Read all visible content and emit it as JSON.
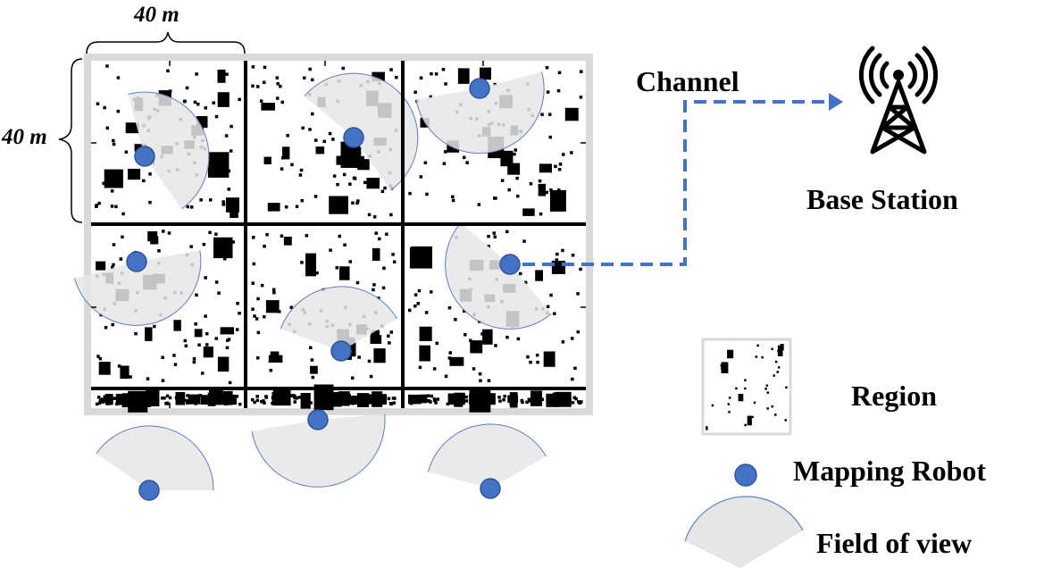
{
  "dimensions": {
    "width_label": "40 m",
    "height_label": "40 m"
  },
  "channel_label": "Channel",
  "base_station_label": "Base Station",
  "legend": {
    "region_label": "Region",
    "robot_label": "Mapping Robot",
    "fov_label": "Field of view"
  },
  "grid": {
    "rows": 3,
    "cols": 3
  },
  "colors": {
    "robot": "#4472c4",
    "robot_outline": "#2f5597",
    "fov_fill": "#e7e6e6",
    "fov_edge": "#5b7fc0",
    "channel": "#4472c4",
    "obstacle": "#000000",
    "frame": "#d9d9d9"
  },
  "icons": {
    "base_station": "radio-tower-icon",
    "robot": "circle"
  }
}
